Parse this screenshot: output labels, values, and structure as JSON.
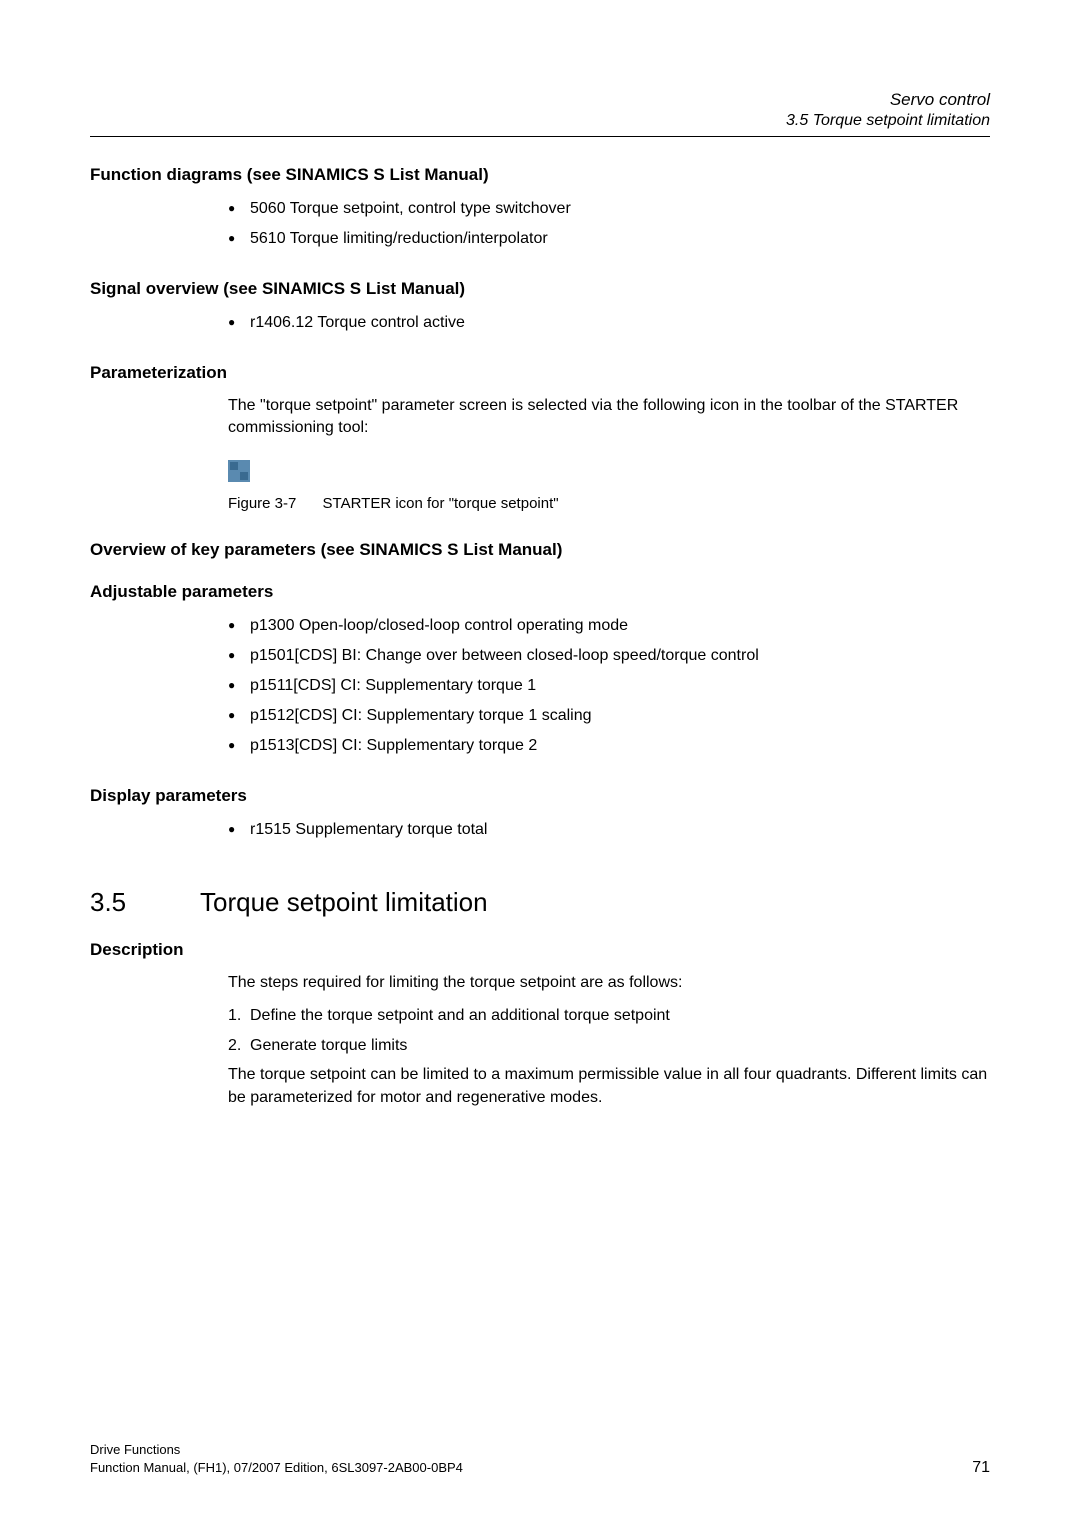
{
  "header": {
    "chapter": "Servo control",
    "section": "3.5 Torque setpoint limitation"
  },
  "sec1": {
    "heading": "Function diagrams (see SINAMICS S List Manual)",
    "items": [
      "5060 Torque setpoint, control type switchover",
      "5610 Torque limiting/reduction/interpolator"
    ]
  },
  "sec2": {
    "heading": "Signal overview (see SINAMICS S List Manual)",
    "items": [
      "r1406.12 Torque control active"
    ]
  },
  "sec3": {
    "heading": "Parameterization",
    "text": "The \"torque setpoint\" parameter screen is selected via the following icon in the toolbar of the STARTER commissioning tool:",
    "figure_num": "Figure 3-7",
    "figure_caption": "STARTER icon for \"torque setpoint\""
  },
  "sec4": {
    "heading": "Overview of key parameters (see SINAMICS S List Manual)"
  },
  "sec5": {
    "heading": "Adjustable parameters",
    "items": [
      "p1300 Open-loop/closed-loop control operating mode",
      "p1501[CDS] BI: Change over between closed-loop speed/torque control",
      "p1511[CDS] CI: Supplementary torque 1",
      "p1512[CDS] CI: Supplementary torque 1 scaling",
      "p1513[CDS] CI: Supplementary torque 2"
    ]
  },
  "sec6": {
    "heading": "Display parameters",
    "items": [
      "r1515 Supplementary torque total"
    ]
  },
  "main_section": {
    "num": "3.5",
    "title": "Torque setpoint limitation"
  },
  "sec7": {
    "heading": "Description",
    "intro": "The steps required for limiting the torque setpoint are as follows:",
    "steps": [
      "Define the torque setpoint and an additional torque setpoint",
      "Generate torque limits"
    ],
    "outro": "The torque setpoint can be limited to a maximum permissible value in all four quadrants. Different limits can be parameterized for motor and regenerative modes."
  },
  "footer": {
    "line1": "Drive Functions",
    "line2": "Function Manual, (FH1), 07/2007 Edition, 6SL3097-2AB00-0BP4",
    "page": "71"
  }
}
